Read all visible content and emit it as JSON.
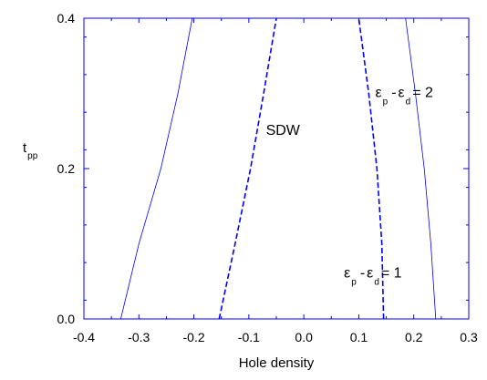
{
  "chart_data": {
    "type": "line",
    "title": "",
    "xlabel": "Hole density",
    "ylabel": {
      "main": "t",
      "sub": "pp"
    },
    "xlim": [
      -0.4,
      0.3
    ],
    "ylim": [
      0.0,
      0.4
    ],
    "xticks": [
      "-0.4",
      "-0.3",
      "-0.2",
      "-0.1",
      "0.0",
      "0.1",
      "0.2",
      "0.3"
    ],
    "yticks": [
      "0.0",
      "0.2",
      "0.4"
    ],
    "grid": false,
    "axis_color": "#0000ff",
    "series": [
      {
        "style": "solid",
        "color": "#0000ff",
        "x": [
          -0.333,
          -0.3,
          -0.26,
          -0.229,
          -0.203
        ],
        "y": [
          0.0,
          0.1,
          0.2,
          0.3,
          0.4
        ]
      },
      {
        "style": "dashed",
        "color": "#0000ff",
        "x": [
          -0.154,
          -0.125,
          -0.097,
          -0.073,
          -0.05
        ],
        "y": [
          0.0,
          0.1,
          0.2,
          0.3,
          0.4
        ]
      },
      {
        "style": "dashed",
        "color": "#0000ff",
        "x": [
          0.145,
          0.142,
          0.133,
          0.118,
          0.1
        ],
        "y": [
          0.0,
          0.1,
          0.2,
          0.3,
          0.4
        ]
      },
      {
        "style": "solid",
        "color": "#0000ff",
        "x": [
          0.24,
          0.231,
          0.219,
          0.203,
          0.185
        ],
        "y": [
          0.0,
          0.1,
          0.2,
          0.3,
          0.4
        ]
      }
    ],
    "annotations": {
      "region": {
        "text": "SDW",
        "x": -0.038,
        "y": 0.245
      },
      "eps2": {
        "eps": "ε",
        "p": "p",
        "minus": "-",
        "d": "d",
        "value": "= 2",
        "x": 0.13,
        "y": 0.295
      },
      "eps1": {
        "eps": "ε",
        "p": "p",
        "minus": "-",
        "d": "d",
        "value": "= 1",
        "x": 0.073,
        "y": 0.055
      }
    }
  }
}
